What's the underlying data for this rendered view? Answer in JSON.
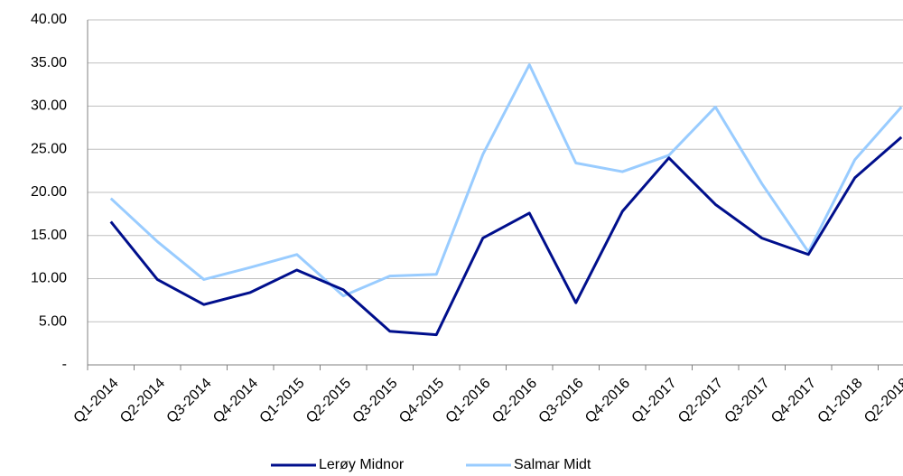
{
  "chart_data": {
    "type": "line",
    "categories": [
      "Q1-2014",
      "Q2-2014",
      "Q3-2014",
      "Q4-2014",
      "Q1-2015",
      "Q2-2015",
      "Q3-2015",
      "Q4-2015",
      "Q1-2016",
      "Q2-2016",
      "Q3-2016",
      "Q4-2016",
      "Q1-2017",
      "Q2-2017",
      "Q3-2017",
      "Q4-2017",
      "Q1-2018",
      "Q2-2018"
    ],
    "series": [
      {
        "name": "Lerøy Midnor",
        "color": "#000f8c",
        "values": [
          16.6,
          9.9,
          7.0,
          8.4,
          11.0,
          8.7,
          3.9,
          3.5,
          14.7,
          17.6,
          7.2,
          17.8,
          24.0,
          18.6,
          14.7,
          12.8,
          21.7,
          26.4
        ]
      },
      {
        "name": "Salmar Midt",
        "color": "#99ccff",
        "values": [
          19.3,
          14.3,
          9.9,
          11.3,
          12.8,
          8.0,
          10.3,
          10.5,
          24.4,
          34.8,
          23.4,
          22.4,
          24.3,
          29.9,
          21.0,
          13.1,
          23.8,
          29.9
        ]
      }
    ],
    "ylim": [
      0,
      40
    ],
    "yticks": [
      {
        "value": 0,
        "label": "-"
      },
      {
        "value": 5,
        "label": "5.00"
      },
      {
        "value": 10,
        "label": "10.00"
      },
      {
        "value": 15,
        "label": "15.00"
      },
      {
        "value": 20,
        "label": "20.00"
      },
      {
        "value": 25,
        "label": "25.00"
      },
      {
        "value": 30,
        "label": "30.00"
      },
      {
        "value": 35,
        "label": "35.00"
      },
      {
        "value": 40,
        "label": "40.00"
      }
    ],
    "grid": true,
    "legend": "bottom"
  }
}
